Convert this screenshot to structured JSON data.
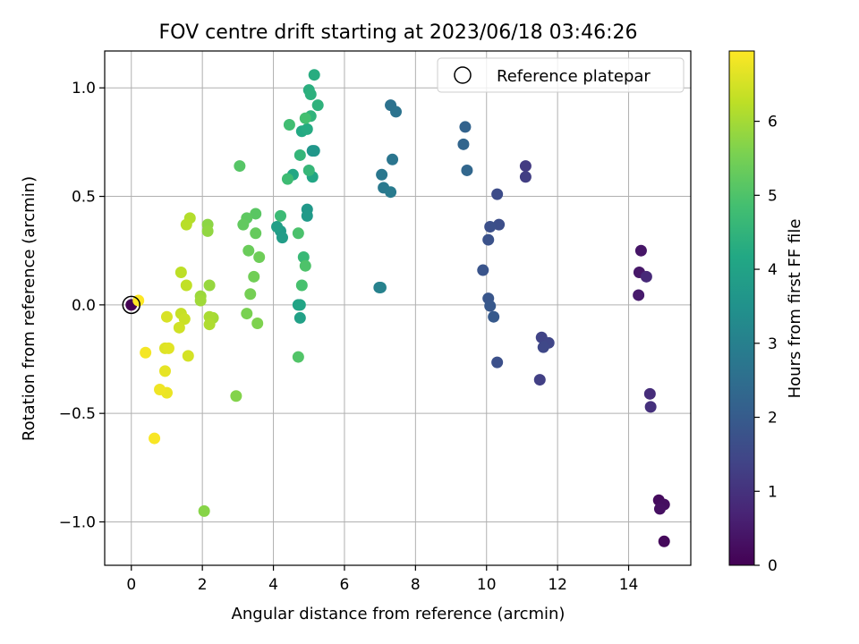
{
  "chart_data": {
    "type": "scatter",
    "title": "FOV centre drift starting at 2023/06/18 03:46:26",
    "xlabel": "Angular distance from reference (arcmin)",
    "ylabel": "Rotation from reference (arcmin)",
    "xlim": [
      -0.75,
      15.75
    ],
    "ylim": [
      -1.2,
      1.17
    ],
    "xticks": [
      0,
      2,
      4,
      6,
      8,
      10,
      12,
      14
    ],
    "yticks": [
      1.0,
      0.5,
      0.0,
      -0.5,
      -1.0
    ],
    "ytick_labels": [
      "1.0",
      "0.5",
      "0.0",
      "−0.5",
      "−1.0"
    ],
    "grid": true,
    "legend": {
      "label": "Reference platepar",
      "location": "upper right"
    },
    "reference_point": {
      "x": 0,
      "y": 0
    },
    "colorbar": {
      "label": "Hours from first FF file",
      "colormap": "viridis",
      "range": [
        0,
        6.95
      ],
      "ticks": [
        0,
        1,
        2,
        3,
        4,
        5,
        6
      ]
    },
    "points": [
      {
        "x": 0.0,
        "y": 0.0,
        "h": 0.0
      },
      {
        "x": 15.0,
        "y": -1.09,
        "h": 0.15
      },
      {
        "x": 14.85,
        "y": -0.9,
        "h": 0.2
      },
      {
        "x": 15.0,
        "y": -0.92,
        "h": 0.25
      },
      {
        "x": 14.88,
        "y": -0.94,
        "h": 0.3
      },
      {
        "x": 14.35,
        "y": 0.25,
        "h": 0.4
      },
      {
        "x": 14.3,
        "y": 0.15,
        "h": 0.45
      },
      {
        "x": 14.28,
        "y": 0.045,
        "h": 0.5
      },
      {
        "x": 14.5,
        "y": 0.13,
        "h": 0.8
      },
      {
        "x": 14.6,
        "y": -0.41,
        "h": 0.9
      },
      {
        "x": 14.62,
        "y": -0.47,
        "h": 0.95
      },
      {
        "x": 11.1,
        "y": 0.64,
        "h": 1.2
      },
      {
        "x": 11.1,
        "y": 0.59,
        "h": 1.25
      },
      {
        "x": 11.55,
        "y": -0.15,
        "h": 1.4
      },
      {
        "x": 11.75,
        "y": -0.175,
        "h": 1.45
      },
      {
        "x": 11.6,
        "y": -0.195,
        "h": 1.5
      },
      {
        "x": 11.5,
        "y": -0.345,
        "h": 1.3
      },
      {
        "x": 10.3,
        "y": 0.51,
        "h": 1.6
      },
      {
        "x": 10.35,
        "y": 0.37,
        "h": 1.65
      },
      {
        "x": 10.1,
        "y": 0.36,
        "h": 1.7
      },
      {
        "x": 10.05,
        "y": 0.3,
        "h": 1.75
      },
      {
        "x": 9.9,
        "y": 0.16,
        "h": 1.8
      },
      {
        "x": 10.05,
        "y": 0.03,
        "h": 1.85
      },
      {
        "x": 10.1,
        "y": -0.005,
        "h": 1.9
      },
      {
        "x": 10.2,
        "y": -0.055,
        "h": 1.95
      },
      {
        "x": 10.3,
        "y": -0.265,
        "h": 1.7
      },
      {
        "x": 9.4,
        "y": 0.82,
        "h": 2.2
      },
      {
        "x": 9.35,
        "y": 0.74,
        "h": 2.25
      },
      {
        "x": 9.45,
        "y": 0.62,
        "h": 2.3
      },
      {
        "x": 7.3,
        "y": 0.92,
        "h": 2.6
      },
      {
        "x": 7.45,
        "y": 0.89,
        "h": 2.65
      },
      {
        "x": 7.35,
        "y": 0.67,
        "h": 2.7
      },
      {
        "x": 7.05,
        "y": 0.6,
        "h": 2.75
      },
      {
        "x": 7.1,
        "y": 0.54,
        "h": 2.8
      },
      {
        "x": 7.3,
        "y": 0.52,
        "h": 2.85
      },
      {
        "x": 6.98,
        "y": 0.08,
        "h": 3.0
      },
      {
        "x": 7.02,
        "y": 0.08,
        "h": 3.05
      },
      {
        "x": 5.1,
        "y": 0.71,
        "h": 3.6
      },
      {
        "x": 5.15,
        "y": 0.71,
        "h": 3.65
      },
      {
        "x": 4.95,
        "y": 0.44,
        "h": 3.7
      },
      {
        "x": 4.95,
        "y": 0.41,
        "h": 3.75
      },
      {
        "x": 4.2,
        "y": 0.34,
        "h": 3.8
      },
      {
        "x": 4.25,
        "y": 0.31,
        "h": 3.85
      },
      {
        "x": 4.1,
        "y": 0.36,
        "h": 3.9
      },
      {
        "x": 4.75,
        "y": -0.06,
        "h": 3.95
      },
      {
        "x": 4.7,
        "y": 0.0,
        "h": 4.0
      },
      {
        "x": 4.75,
        "y": 0.0,
        "h": 4.05
      },
      {
        "x": 5.1,
        "y": 0.59,
        "h": 4.1
      },
      {
        "x": 4.55,
        "y": 0.6,
        "h": 4.15
      },
      {
        "x": 4.8,
        "y": 0.8,
        "h": 4.2
      },
      {
        "x": 4.95,
        "y": 0.81,
        "h": 4.25
      },
      {
        "x": 5.15,
        "y": 1.06,
        "h": 4.3
      },
      {
        "x": 5.0,
        "y": 0.99,
        "h": 4.35
      },
      {
        "x": 5.05,
        "y": 0.97,
        "h": 4.4
      },
      {
        "x": 5.25,
        "y": 0.92,
        "h": 4.45
      },
      {
        "x": 5.05,
        "y": 0.87,
        "h": 4.5
      },
      {
        "x": 4.75,
        "y": 0.69,
        "h": 4.55
      },
      {
        "x": 5.0,
        "y": 0.62,
        "h": 4.6
      },
      {
        "x": 4.85,
        "y": 0.22,
        "h": 4.65
      },
      {
        "x": 4.2,
        "y": 0.41,
        "h": 4.7
      },
      {
        "x": 4.4,
        "y": 0.58,
        "h": 4.75
      },
      {
        "x": 4.45,
        "y": 0.83,
        "h": 4.8
      },
      {
        "x": 4.9,
        "y": 0.86,
        "h": 4.85
      },
      {
        "x": 4.8,
        "y": 0.09,
        "h": 4.9
      },
      {
        "x": 4.7,
        "y": 0.33,
        "h": 4.95
      },
      {
        "x": 4.9,
        "y": 0.18,
        "h": 5.0
      },
      {
        "x": 4.7,
        "y": -0.24,
        "h": 5.05
      },
      {
        "x": 3.05,
        "y": 0.64,
        "h": 5.1
      },
      {
        "x": 3.5,
        "y": 0.42,
        "h": 5.15
      },
      {
        "x": 3.25,
        "y": 0.4,
        "h": 5.2
      },
      {
        "x": 3.15,
        "y": 0.37,
        "h": 5.25
      },
      {
        "x": 3.5,
        "y": 0.33,
        "h": 5.3
      },
      {
        "x": 3.3,
        "y": 0.25,
        "h": 5.35
      },
      {
        "x": 3.6,
        "y": 0.22,
        "h": 5.4
      },
      {
        "x": 3.45,
        "y": 0.13,
        "h": 5.45
      },
      {
        "x": 3.35,
        "y": 0.05,
        "h": 5.5
      },
      {
        "x": 3.25,
        "y": -0.04,
        "h": 5.55
      },
      {
        "x": 3.55,
        "y": -0.085,
        "h": 5.6
      },
      {
        "x": 2.95,
        "y": -0.42,
        "h": 5.65
      },
      {
        "x": 2.05,
        "y": -0.95,
        "h": 5.7
      },
      {
        "x": 2.15,
        "y": 0.37,
        "h": 5.75
      },
      {
        "x": 2.15,
        "y": 0.34,
        "h": 5.8
      },
      {
        "x": 2.2,
        "y": 0.09,
        "h": 5.85
      },
      {
        "x": 1.95,
        "y": 0.04,
        "h": 5.9
      },
      {
        "x": 1.95,
        "y": 0.02,
        "h": 5.95
      },
      {
        "x": 2.3,
        "y": -0.06,
        "h": 6.0
      },
      {
        "x": 2.2,
        "y": -0.055,
        "h": 6.05
      },
      {
        "x": 2.2,
        "y": -0.09,
        "h": 6.1
      },
      {
        "x": 1.65,
        "y": 0.4,
        "h": 6.15
      },
      {
        "x": 1.55,
        "y": 0.37,
        "h": 6.2
      },
      {
        "x": 1.4,
        "y": 0.15,
        "h": 6.25
      },
      {
        "x": 1.55,
        "y": 0.09,
        "h": 6.3
      },
      {
        "x": 1.4,
        "y": -0.04,
        "h": 6.35
      },
      {
        "x": 1.5,
        "y": -0.065,
        "h": 6.4
      },
      {
        "x": 1.35,
        "y": -0.105,
        "h": 6.45
      },
      {
        "x": 1.6,
        "y": -0.235,
        "h": 6.5
      },
      {
        "x": 1.0,
        "y": -0.055,
        "h": 6.55
      },
      {
        "x": 0.95,
        "y": -0.2,
        "h": 6.6
      },
      {
        "x": 1.05,
        "y": -0.2,
        "h": 6.65
      },
      {
        "x": 0.95,
        "y": -0.305,
        "h": 6.7
      },
      {
        "x": 1.0,
        "y": -0.405,
        "h": 6.75
      },
      {
        "x": 0.8,
        "y": -0.39,
        "h": 6.8
      },
      {
        "x": 0.4,
        "y": -0.22,
        "h": 6.85
      },
      {
        "x": 0.65,
        "y": -0.615,
        "h": 6.9
      },
      {
        "x": 0.2,
        "y": 0.02,
        "h": 6.95
      }
    ]
  }
}
